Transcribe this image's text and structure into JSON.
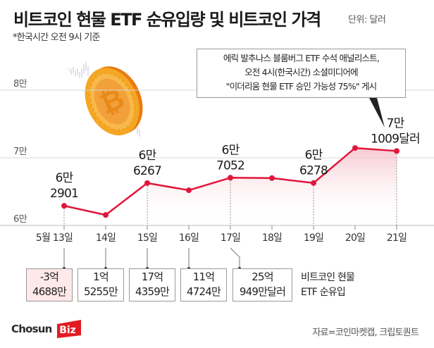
{
  "header": {
    "title": "비트코인 현물 ETF 순유입량 및 비트코인 가격",
    "unit": "단위: 달러",
    "subtitle": "*한국시간 오전 9시 기준"
  },
  "annotation": {
    "lines": [
      "에릭 발추나스 블룸버그 ETF 수석 애널리스트,",
      "오전 4시(한국시간) 소셜미디어에",
      "\"이더리움 현물 ETF 승인 가능성 75%\" 게시"
    ]
  },
  "colors": {
    "line": "#e0163a",
    "area_fill": "#f7c8d0",
    "grid": "#cccccc",
    "negative_box": "#fde8ea",
    "brand_red": "#e31b23"
  },
  "chart_data": {
    "type": "line",
    "title": "비트코인 현물 ETF 순유입량 및 비트코인 가격",
    "unit": "달러",
    "categories": [
      "5월 13일",
      "14일",
      "15일",
      "16일",
      "17일",
      "18일",
      "19일",
      "20일",
      "21일"
    ],
    "series": [
      {
        "name": "비트코인 가격",
        "values": [
          62901,
          61550,
          66267,
          65200,
          67052,
          67000,
          66278,
          71450,
          71009
        ]
      }
    ],
    "data_labels": [
      {
        "index": 0,
        "lines": [
          "6만",
          "2901"
        ]
      },
      {
        "index": 2,
        "lines": [
          "6만",
          "6267"
        ]
      },
      {
        "index": 4,
        "lines": [
          "6만",
          "7052"
        ]
      },
      {
        "index": 6,
        "lines": [
          "6만",
          "6278"
        ]
      },
      {
        "index": 8,
        "lines": [
          "7만",
          "1009달러"
        ]
      }
    ],
    "y_ticks": [
      {
        "value": 60000,
        "label": "6만"
      },
      {
        "value": 70000,
        "label": "7만"
      },
      {
        "value": 80000,
        "label": "8만"
      }
    ],
    "ylim": [
      60000,
      80000
    ],
    "grid": true,
    "shaded_range": [
      4,
      8
    ],
    "etf_net_inflow": {
      "label_lines": [
        "비트코인 현물",
        "ETF 순유입"
      ],
      "entries": [
        {
          "index": 0,
          "lines": [
            "-3억",
            "4688만"
          ],
          "value": -346880000,
          "negative": true
        },
        {
          "index": 1,
          "lines": [
            "1억",
            "5255만"
          ],
          "value": 152550000,
          "negative": false
        },
        {
          "index": 2,
          "lines": [
            "17억",
            "4359만"
          ],
          "value": 1743590000,
          "negative": false
        },
        {
          "index": 3,
          "lines": [
            "11억",
            "4724만"
          ],
          "value": 1147240000,
          "negative": false
        },
        {
          "index": 4,
          "lines": [
            "25억",
            "949만달러"
          ],
          "value": 2509490000,
          "negative": false
        }
      ]
    }
  },
  "footer": {
    "logo_text": "Chosun",
    "logo_badge": "Biz",
    "source": "자료=코인마켓캡, 크립토퀀트"
  }
}
